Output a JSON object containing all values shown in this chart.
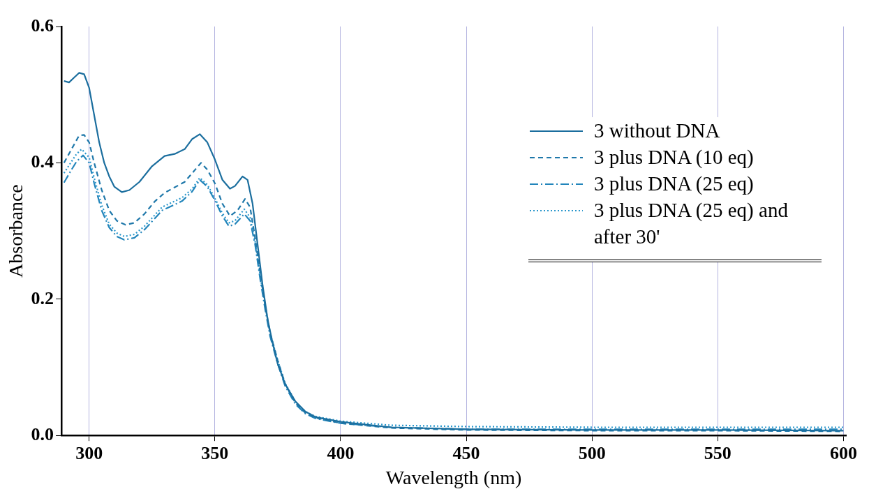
{
  "chart_data": {
    "type": "line",
    "xlabel": "Wavelength (nm)",
    "ylabel": "Absorbance",
    "xlim": [
      289,
      601
    ],
    "xticks": [
      300,
      350,
      400,
      450,
      500,
      550,
      600
    ],
    "ylim": [
      0,
      0.6
    ],
    "yticks": [
      {
        "value": 0,
        "label": "0.0"
      },
      {
        "value": 0.2,
        "label": "0.2"
      },
      {
        "value": 0.4,
        "label": "0.4"
      },
      {
        "value": 0.6,
        "label": "0.6"
      }
    ],
    "grid": "x",
    "legend": "right",
    "marker": "none",
    "series": [
      {
        "name": "3 without DNA",
        "color": "#1b6e9e",
        "line_style": "solid",
        "x": [
          290,
          292,
          294,
          296,
          298,
          300,
          302,
          304,
          306,
          308,
          310,
          313,
          316,
          320,
          325,
          330,
          334,
          338,
          341,
          344,
          347,
          350,
          353,
          356,
          358,
          361,
          363,
          365,
          367,
          369,
          371,
          373,
          375,
          378,
          382,
          386,
          390,
          400,
          420,
          450,
          500,
          550,
          600
        ],
        "values": [
          0.52,
          0.518,
          0.525,
          0.532,
          0.53,
          0.51,
          0.47,
          0.43,
          0.4,
          0.38,
          0.365,
          0.357,
          0.36,
          0.372,
          0.395,
          0.41,
          0.413,
          0.42,
          0.435,
          0.442,
          0.43,
          0.405,
          0.375,
          0.362,
          0.366,
          0.38,
          0.375,
          0.34,
          0.28,
          0.22,
          0.17,
          0.135,
          0.105,
          0.075,
          0.05,
          0.035,
          0.027,
          0.02,
          0.012,
          0.009,
          0.008,
          0.008,
          0.007
        ]
      },
      {
        "name": "3 plus DNA (10 eq)",
        "color": "#1f78aa",
        "line_style": "dashed",
        "x": [
          290,
          293,
          296,
          298,
          300,
          302,
          305,
          308,
          311,
          314.5,
          318,
          322,
          326,
          330,
          335,
          338,
          341,
          344.5,
          347,
          350,
          353,
          356,
          359,
          362,
          364,
          366,
          368,
          370,
          372,
          375,
          378,
          382,
          386,
          390,
          400,
          420,
          450,
          500,
          550,
          600
        ],
        "values": [
          0.4,
          0.42,
          0.44,
          0.441,
          0.43,
          0.4,
          0.36,
          0.33,
          0.315,
          0.309,
          0.312,
          0.325,
          0.343,
          0.356,
          0.366,
          0.372,
          0.385,
          0.4,
          0.39,
          0.37,
          0.34,
          0.322,
          0.33,
          0.347,
          0.335,
          0.29,
          0.24,
          0.19,
          0.15,
          0.11,
          0.075,
          0.048,
          0.033,
          0.026,
          0.018,
          0.011,
          0.008,
          0.007,
          0.007,
          0.006
        ]
      },
      {
        "name": "3 plus DNA (25 eq)",
        "color": "#2285bb",
        "line_style": "dashdot",
        "x": [
          290,
          293,
          295,
          297.6,
          300,
          302,
          305,
          308,
          311,
          314,
          318,
          322,
          326,
          329,
          333,
          337,
          341,
          344,
          347,
          350,
          353,
          355.6,
          358,
          361.7,
          364,
          366,
          368,
          370,
          372,
          375,
          378,
          382,
          386,
          390,
          400,
          420,
          450,
          500,
          550,
          600
        ],
        "values": [
          0.371,
          0.39,
          0.402,
          0.411,
          0.4,
          0.37,
          0.33,
          0.305,
          0.292,
          0.287,
          0.29,
          0.302,
          0.318,
          0.33,
          0.337,
          0.344,
          0.358,
          0.375,
          0.365,
          0.345,
          0.322,
          0.307,
          0.31,
          0.325,
          0.315,
          0.28,
          0.23,
          0.185,
          0.145,
          0.105,
          0.072,
          0.046,
          0.032,
          0.025,
          0.018,
          0.012,
          0.009,
          0.009,
          0.009,
          0.009
        ]
      },
      {
        "name": "3 plus DNA (25 eq) and after 30'",
        "color": "#2a97cc",
        "line_style": "dotted",
        "x": [
          290,
          293,
          295,
          297,
          300,
          302,
          305,
          308,
          311,
          314,
          318,
          322,
          326,
          329,
          333,
          337,
          341,
          344,
          347,
          350,
          353,
          355.6,
          358,
          361.7,
          364,
          366,
          368,
          370,
          372,
          375,
          378,
          382,
          386,
          390,
          400,
          420,
          450,
          500,
          550,
          600
        ],
        "values": [
          0.385,
          0.402,
          0.413,
          0.42,
          0.408,
          0.378,
          0.338,
          0.31,
          0.297,
          0.292,
          0.295,
          0.307,
          0.323,
          0.335,
          0.342,
          0.349,
          0.362,
          0.378,
          0.368,
          0.348,
          0.326,
          0.312,
          0.315,
          0.332,
          0.32,
          0.285,
          0.235,
          0.19,
          0.15,
          0.11,
          0.076,
          0.05,
          0.035,
          0.028,
          0.021,
          0.015,
          0.013,
          0.012,
          0.012,
          0.012
        ]
      }
    ]
  }
}
